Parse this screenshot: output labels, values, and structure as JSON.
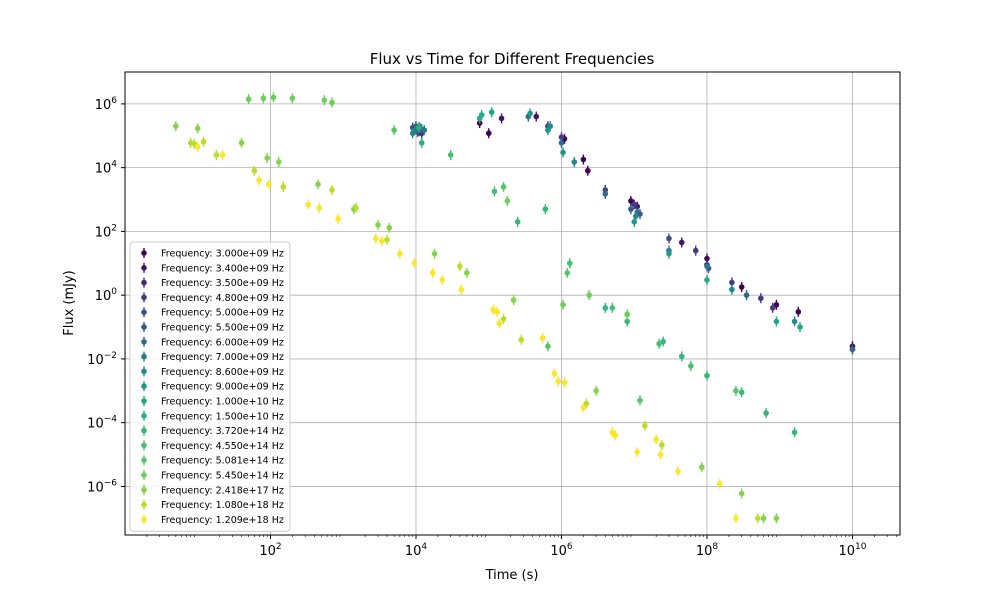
{
  "chart_data": {
    "type": "scatter",
    "title": "Flux vs Time for Different Frequencies",
    "xlabel": "Time (s)",
    "ylabel": "Flux (mJy)",
    "xscale": "log",
    "yscale": "log",
    "xlim": [
      1,
      45000000000.0
    ],
    "ylim": [
      3e-08,
      10000000.0
    ],
    "grid": true,
    "legend_position": "lower-left",
    "x_ticks": [
      {
        "value": 100,
        "base": "10",
        "exp": "2"
      },
      {
        "value": 10000,
        "base": "10",
        "exp": "4"
      },
      {
        "value": 1000000,
        "base": "10",
        "exp": "6"
      },
      {
        "value": 100000000,
        "base": "10",
        "exp": "8"
      },
      {
        "value": 10000000000,
        "base": "10",
        "exp": "10"
      }
    ],
    "y_ticks": [
      {
        "value": 1000000.0,
        "base": "10",
        "exp": "6"
      },
      {
        "value": 10000.0,
        "base": "10",
        "exp": "4"
      },
      {
        "value": 100.0,
        "base": "10",
        "exp": "2"
      },
      {
        "value": 1,
        "base": "10",
        "exp": "0"
      },
      {
        "value": 0.01,
        "base": "10",
        "exp": "−2"
      },
      {
        "value": 0.0001,
        "base": "10",
        "exp": "−4"
      },
      {
        "value": 1e-06,
        "base": "10",
        "exp": "−6"
      }
    ],
    "series": [
      {
        "name": "Frequency: 3.000e+09 Hz",
        "color": "#440154",
        "points": [
          [
            75000.0,
            250000.0
          ],
          [
            100000.0,
            120000.0
          ],
          [
            1100000.0,
            80000.0
          ],
          [
            2000000.0,
            18000.0
          ],
          [
            2300000.0,
            8000.0
          ],
          [
            9000000.0,
            900.0
          ],
          [
            100000000.0,
            14.0
          ],
          [
            300000000.0,
            1.8
          ],
          [
            900000000.0,
            0.5
          ],
          [
            1800000000.0,
            0.3
          ],
          [
            10000000000.0,
            0.025
          ]
        ]
      },
      {
        "name": "Frequency: 3.400e+09 Hz",
        "color": "#471365",
        "points": [
          [
            150000.0,
            350000.0
          ],
          [
            450000.0,
            400000.0
          ],
          [
            11000000.0,
            600.0
          ],
          [
            45000000.0,
            45.0
          ],
          [
            100000000.0,
            9
          ]
        ]
      },
      {
        "name": "Frequency: 3.500e+09 Hz",
        "color": "#482576",
        "points": [
          [
            9500.0,
            150000.0
          ],
          [
            11000.0,
            140000.0
          ],
          [
            12000.0,
            120000.0
          ],
          [
            10000.0,
            160000.0
          ]
        ]
      },
      {
        "name": "Frequency: 4.800e+09 Hz",
        "color": "#443a83",
        "points": [
          [
            650000.0,
            200000.0
          ],
          [
            1000000.0,
            90000.0
          ],
          [
            4000000.0,
            2000.0
          ],
          [
            10000000.0,
            700.0
          ],
          [
            70000000.0,
            25.0
          ],
          [
            220000000.0,
            2.5
          ],
          [
            550000000.0,
            0.8
          ],
          [
            800000000.0,
            0.4
          ],
          [
            10000000000.0,
            0.02
          ]
        ]
      },
      {
        "name": "Frequency: 5.000e+09 Hz",
        "color": "#3e4c8a",
        "points": [
          [
            9000.0,
            180000.0
          ],
          [
            10500.0,
            130000.0
          ],
          [
            11500.0,
            170000.0
          ],
          [
            30000000.0,
            60.0
          ],
          [
            105000000.0,
            7
          ]
        ]
      },
      {
        "name": "Frequency: 5.500e+09 Hz",
        "color": "#375a8c",
        "points": [
          [
            10000.0,
            200000.0
          ],
          [
            12000.0,
            160000.0
          ],
          [
            9000000.0,
            500.0
          ],
          [
            12000000.0,
            350.0
          ]
        ]
      },
      {
        "name": "Frequency: 6.000e+09 Hz",
        "color": "#31688e",
        "points": [
          [
            350000.0,
            400000.0
          ],
          [
            1000000.0,
            60000.0
          ],
          [
            4000000.0,
            1500.0
          ],
          [
            11000000.0,
            400.0
          ],
          [
            350000000.0,
            1.0
          ],
          [
            10000000000.0,
            0.02
          ]
        ]
      },
      {
        "name": "Frequency: 7.000e+09 Hz",
        "color": "#2a788e",
        "points": [
          [
            10000.0,
            160000.0
          ],
          [
            13000.0,
            150000.0
          ],
          [
            30000000.0,
            25.0
          ],
          [
            100000000.0,
            8
          ]
        ]
      },
      {
        "name": "Frequency: 8.600e+09 Hz",
        "color": "#23888e",
        "points": [
          [
            9000.0,
            120000.0
          ],
          [
            11000.0,
            190000.0
          ],
          [
            700000.0,
            200000.0
          ],
          [
            1500000.0,
            15000.0
          ],
          [
            10500000.0,
            300.0
          ],
          [
            220000000.0,
            1.5
          ],
          [
            1600000000.0,
            0.15
          ]
        ]
      },
      {
        "name": "Frequency: 9.000e+09 Hz",
        "color": "#1f988b",
        "points": [
          [
            370000.0,
            500000.0
          ],
          [
            650000.0,
            150000.0
          ],
          [
            1050000.0,
            30000.0
          ],
          [
            10000000.0,
            200.0
          ],
          [
            30000000.0,
            20.0
          ]
        ]
      },
      {
        "name": "Frequency: 1.000e+10 Hz",
        "color": "#22a884",
        "points": [
          [
            80000.0,
            450000.0
          ],
          [
            110000.0,
            550000.0
          ],
          [
            100000000.0,
            3
          ],
          [
            900000000.0,
            0.15
          ],
          [
            1900000000.0,
            0.1
          ]
        ]
      },
      {
        "name": "Frequency: 1.500e+10 Hz",
        "color": "#2ab07f",
        "points": [
          [
            75000.0,
            350000.0
          ],
          [
            12000.0,
            60000.0
          ],
          [
            11000.0,
            180000.0
          ]
        ]
      },
      {
        "name": "Frequency: 3.720e+14 Hz",
        "color": "#35b779",
        "points": [
          [
            250000.0,
            200.0
          ],
          [
            600000.0,
            500.0
          ],
          [
            4000000.0,
            0.4
          ],
          [
            8000000.0,
            0.15
          ],
          [
            25000000.0,
            0.035
          ],
          [
            45000000.0,
            0.012
          ],
          [
            100000000.0,
            0.003
          ],
          [
            300000000.0,
            0.0009
          ],
          [
            650000000.0,
            0.0002
          ],
          [
            1600000000.0,
            5e-05
          ]
        ]
      },
      {
        "name": "Frequency: 4.550e+14 Hz",
        "color": "#44bf70",
        "points": [
          [
            30000.0,
            25000.0
          ],
          [
            120000.0,
            1800.0
          ],
          [
            1300000.0,
            10.0
          ],
          [
            5000000.0,
            0.4
          ],
          [
            22000000.0,
            0.03
          ],
          [
            60000000.0,
            0.006
          ]
        ]
      },
      {
        "name": "Frequency: 5.081e+14 Hz",
        "color": "#56c667",
        "points": [
          [
            5000.0,
            150000.0
          ],
          [
            160000.0,
            2500.0
          ],
          [
            1200000.0,
            5
          ],
          [
            650000.0,
            0.025
          ],
          [
            12000000.0,
            0.0005
          ],
          [
            250000000.0,
            0.001
          ]
        ]
      },
      {
        "name": "Frequency: 5.450e+14 Hz",
        "color": "#6ccd5a",
        "points": [
          [
            50,
            1400000.0
          ],
          [
            80,
            1500000.0
          ],
          [
            110,
            1600000.0
          ],
          [
            200,
            1500000.0
          ],
          [
            550,
            1300000.0
          ],
          [
            700,
            1100000.0
          ],
          [
            180000.0,
            900.0
          ],
          [
            2400000.0,
            1
          ],
          [
            1050000.0,
            0.5
          ],
          [
            8000000.0,
            0.25
          ]
        ]
      },
      {
        "name": "Frequency: 2.418e+17 Hz",
        "color": "#84d44b",
        "points": [
          [
            5,
            200000.0
          ],
          [
            10,
            170000.0
          ],
          [
            40,
            60000.0
          ],
          [
            90,
            20000.0
          ],
          [
            130,
            15000.0
          ],
          [
            450,
            3000.0
          ],
          [
            1400.0,
            500.0
          ],
          [
            3000.0,
            160.0
          ],
          [
            4300.0,
            130.0
          ],
          [
            18000.0,
            20.0
          ],
          [
            50000.0,
            5
          ],
          [
            220000.0,
            0.7
          ],
          [
            3000000.0,
            0.001
          ],
          [
            85000000.0,
            4e-06
          ],
          [
            300000000.0,
            6e-07
          ],
          [
            600000000.0,
            1e-07
          ],
          [
            900000000.0,
            1e-07
          ]
        ]
      },
      {
        "name": "Frequency: 1.080e+18 Hz",
        "color": "#bade28",
        "points": [
          [
            8,
            60000.0
          ],
          [
            9,
            55000.0
          ],
          [
            12,
            65000.0
          ],
          [
            18,
            25000.0
          ],
          [
            60,
            8000.0
          ],
          [
            150,
            2500.0
          ],
          [
            700,
            2000.0
          ],
          [
            1500.0,
            550.0
          ],
          [
            4000.0,
            55.0
          ],
          [
            40000.0,
            8
          ],
          [
            160000.0,
            0.18
          ],
          [
            280000.0,
            0.04
          ],
          [
            2200000.0,
            0.0004
          ],
          [
            14000000.0,
            8e-05
          ],
          [
            24000000.0,
            2e-05
          ],
          [
            500000000.0,
            1e-07
          ]
        ]
      },
      {
        "name": "Frequency: 1.209e+18 Hz",
        "color": "#fde725",
        "points": [
          [
            10,
            45000.0
          ],
          [
            22,
            25000.0
          ],
          [
            70,
            4000.0
          ],
          [
            95,
            3000.0
          ],
          [
            330,
            700.0
          ],
          [
            470,
            550.0
          ],
          [
            850,
            250.0
          ],
          [
            2800.0,
            60.0
          ],
          [
            3400.0,
            50.0
          ],
          [
            6000.0,
            20.0
          ],
          [
            9500.0,
            10.0
          ],
          [
            17000.0,
            5
          ],
          [
            23000.0,
            3
          ],
          [
            42000.0,
            1.5
          ],
          [
            115000.0,
            0.35
          ],
          [
            130000.0,
            0.3
          ],
          [
            140000.0,
            0.13
          ],
          [
            550000.0,
            0.045
          ],
          [
            800000.0,
            0.0035
          ],
          [
            900000.0,
            0.002
          ],
          [
            1100000.0,
            0.0018
          ],
          [
            2000000.0,
            0.0003
          ],
          [
            5000000.0,
            5e-05
          ],
          [
            5500000.0,
            4e-05
          ],
          [
            11000000.0,
            1.2e-05
          ],
          [
            20000000.0,
            3e-05
          ],
          [
            23000000.0,
            1e-05
          ],
          [
            40000000.0,
            3e-06
          ],
          [
            150000000.0,
            1.2e-06
          ],
          [
            250000000.0,
            1e-07
          ]
        ]
      }
    ]
  }
}
